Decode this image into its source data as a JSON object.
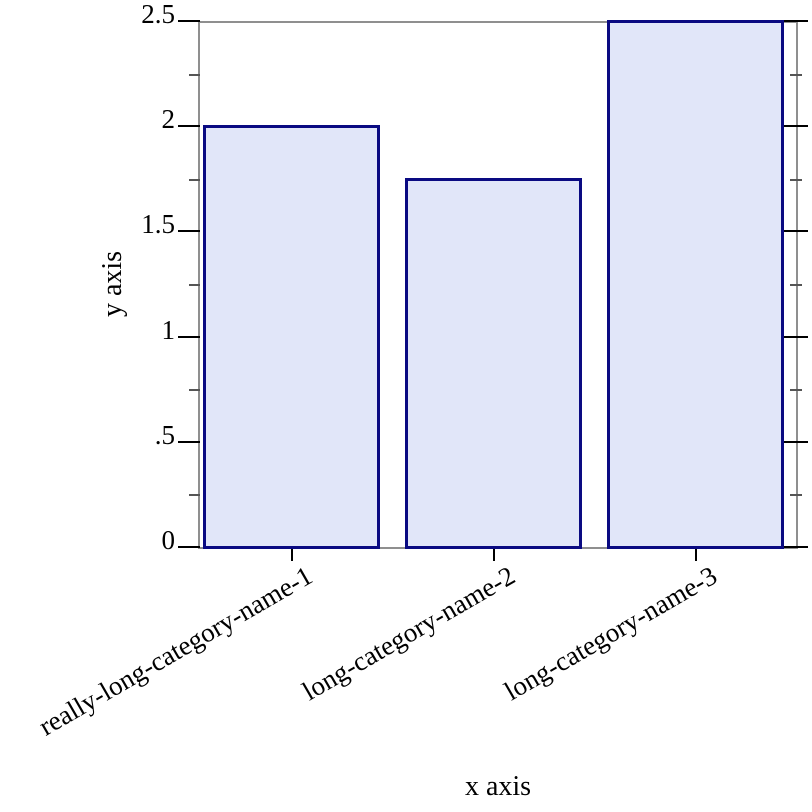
{
  "chart_data": {
    "type": "bar",
    "xlabel": "x axis",
    "ylabel": "y axis",
    "categories": [
      "really-long-category-name-1",
      "long-category-name-2",
      "long-category-name-3"
    ],
    "values": [
      2,
      1.75,
      2.5
    ],
    "ylim": [
      0,
      2.5
    ],
    "yticks_major": [
      0,
      0.5,
      1,
      1.5,
      2,
      2.5
    ],
    "ytick_labels": [
      "0",
      ".5",
      "1",
      "1.5",
      "2",
      "2.5"
    ],
    "yticks_minor": [
      0.25,
      0.75,
      1.25,
      1.75,
      2.25
    ],
    "grid": "off",
    "legend": "none",
    "layout_hints": {
      "bar_label_rotation_deg": -30,
      "ticks_outside_left_axis": true,
      "far_axes_drawn": true
    },
    "colors": {
      "bar_fill": "#e1e6f9",
      "bar_border": "#0a0a82",
      "plot_border": "#8f8f8f",
      "tick_major": "#000000",
      "tick_minor": "#555555",
      "text": "#000000",
      "background": "#ffffff"
    }
  }
}
